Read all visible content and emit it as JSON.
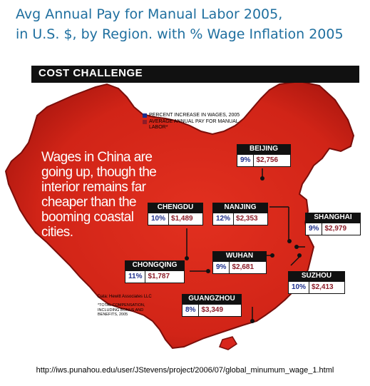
{
  "title": {
    "line1": "Avg Annual Pay for Manual Labor 2005,",
    "line2": "in U.S. $, by Region. with % Wage Inflation 2005"
  },
  "banner": "COST CHALLENGE",
  "legend": {
    "items": [
      {
        "label": "PERCENT INCREASE IN WAGES, 2005",
        "color": "#1d2f8c"
      },
      {
        "label": "AVERAGE ANNUAL PAY FOR MANUAL LABOR*",
        "color": "#8c1c28"
      }
    ]
  },
  "callout": "Wages in China are going up, though the interior remains far cheaper than the booming coastal cities.",
  "cities": [
    {
      "name": "BEIJING",
      "pct": "9%",
      "pay": "$2,756"
    },
    {
      "name": "CHENGDU",
      "pct": "10%",
      "pay": "$1,489"
    },
    {
      "name": "NANJING",
      "pct": "12%",
      "pay": "$2,353"
    },
    {
      "name": "SHANGHAI",
      "pct": "9%",
      "pay": "$2,979"
    },
    {
      "name": "CHONGQING",
      "pct": "11%",
      "pay": "$1,787"
    },
    {
      "name": "WUHAN",
      "pct": "9%",
      "pay": "$2,681"
    },
    {
      "name": "SUZHOU",
      "pct": "10%",
      "pay": "$2,413"
    },
    {
      "name": "GUANGZHOU",
      "pct": "8%",
      "pay": "$3,349"
    }
  ],
  "source": "Data: Hewitt Associates LLC",
  "footnote": "*TOTAL COMPENSATION, INCLUDING BONUS AND BENEFITS, 2005",
  "url": "http://iws.punahou.edu/user/JStevens/project/2006/07/global_minumum_wage_1.html",
  "colors": {
    "map_fill": "#d8261c",
    "map_edge": "#7a0e0a"
  }
}
